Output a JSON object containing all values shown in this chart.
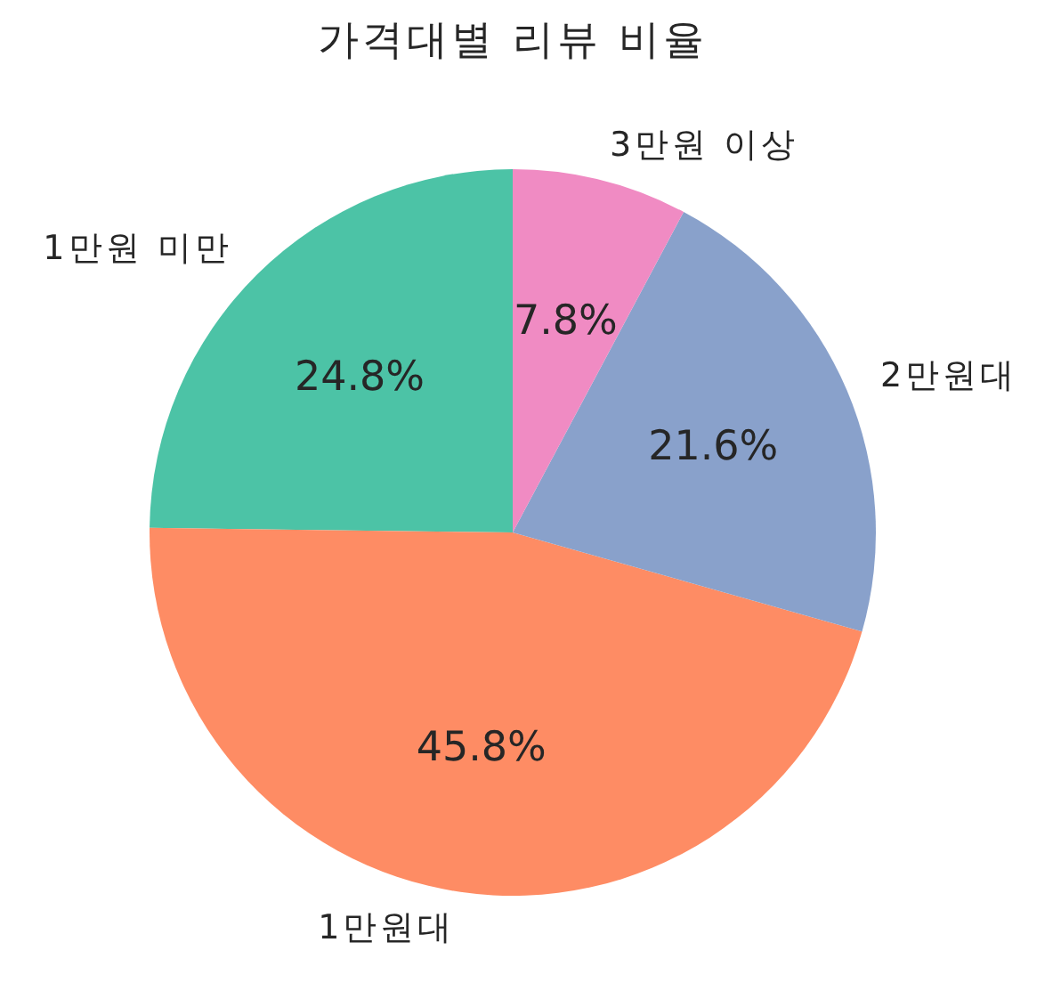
{
  "chart_data": {
    "type": "pie",
    "title": "가격대별 리뷰 비율",
    "categories": [
      "1만원 미만",
      "1만원대",
      "2만원대",
      "3만원 이상"
    ],
    "values": [
      24.8,
      45.8,
      21.6,
      7.8
    ],
    "colors": [
      "#4cc3a6",
      "#fe8c64",
      "#89a1cb",
      "#f08bc3"
    ],
    "value_labels": [
      "24.8%",
      "45.8%",
      "21.6%",
      "7.8%"
    ]
  }
}
